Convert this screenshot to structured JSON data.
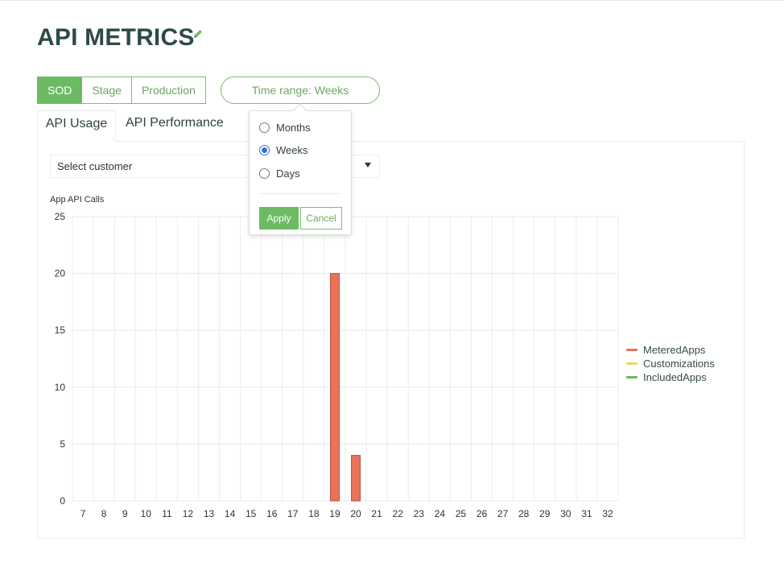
{
  "page": {
    "title": "API METRICS"
  },
  "environments": {
    "items": [
      "SOD",
      "Stage",
      "Production"
    ],
    "active": "SOD"
  },
  "time_range": {
    "label": "Time range: Weeks",
    "options": [
      "Months",
      "Weeks",
      "Days"
    ],
    "selected": "Weeks",
    "apply_label": "Apply",
    "cancel_label": "Cancel"
  },
  "tabs": [
    {
      "label": "API Usage",
      "active": true
    },
    {
      "label": "API Performance",
      "active": false
    }
  ],
  "customer_select": {
    "placeholder": "Select customer"
  },
  "colors": {
    "accent": "#6cbb63",
    "metered": "#e8735a",
    "customizations": "#f2d463",
    "included": "#6cbb63"
  },
  "chart_data": {
    "type": "bar",
    "title": "App API Calls",
    "xlabel": "",
    "ylabel": "",
    "ylim": [
      0,
      25
    ],
    "y_ticks": [
      0,
      5,
      10,
      15,
      20,
      25
    ],
    "grid": true,
    "legend_position": "right",
    "categories": [
      "7",
      "8",
      "9",
      "10",
      "11",
      "12",
      "13",
      "14",
      "15",
      "16",
      "17",
      "18",
      "19",
      "20",
      "21",
      "22",
      "23",
      "24",
      "25",
      "26",
      "27",
      "28",
      "29",
      "30",
      "31",
      "32"
    ],
    "series": [
      {
        "name": "MeteredApps",
        "color": "#e8735a",
        "values": [
          0,
          0,
          0,
          0,
          0,
          0,
          0,
          0,
          0,
          0,
          0,
          0,
          20,
          4,
          0,
          0,
          0,
          0,
          0,
          0,
          0,
          0,
          0,
          0,
          0,
          0
        ]
      },
      {
        "name": "Customizations",
        "color": "#f2d463",
        "values": [
          0,
          0,
          0,
          0,
          0,
          0,
          0,
          0,
          0,
          0,
          0,
          0,
          0,
          0,
          0,
          0,
          0,
          0,
          0,
          0,
          0,
          0,
          0,
          0,
          0,
          0
        ]
      },
      {
        "name": "IncludedApps",
        "color": "#6cbb63",
        "values": [
          0,
          0,
          0,
          0,
          0,
          0,
          0,
          0,
          0,
          0,
          0,
          0,
          0,
          0,
          0,
          0,
          0,
          0,
          0,
          0,
          0,
          0,
          0,
          0,
          0,
          0
        ]
      }
    ]
  }
}
